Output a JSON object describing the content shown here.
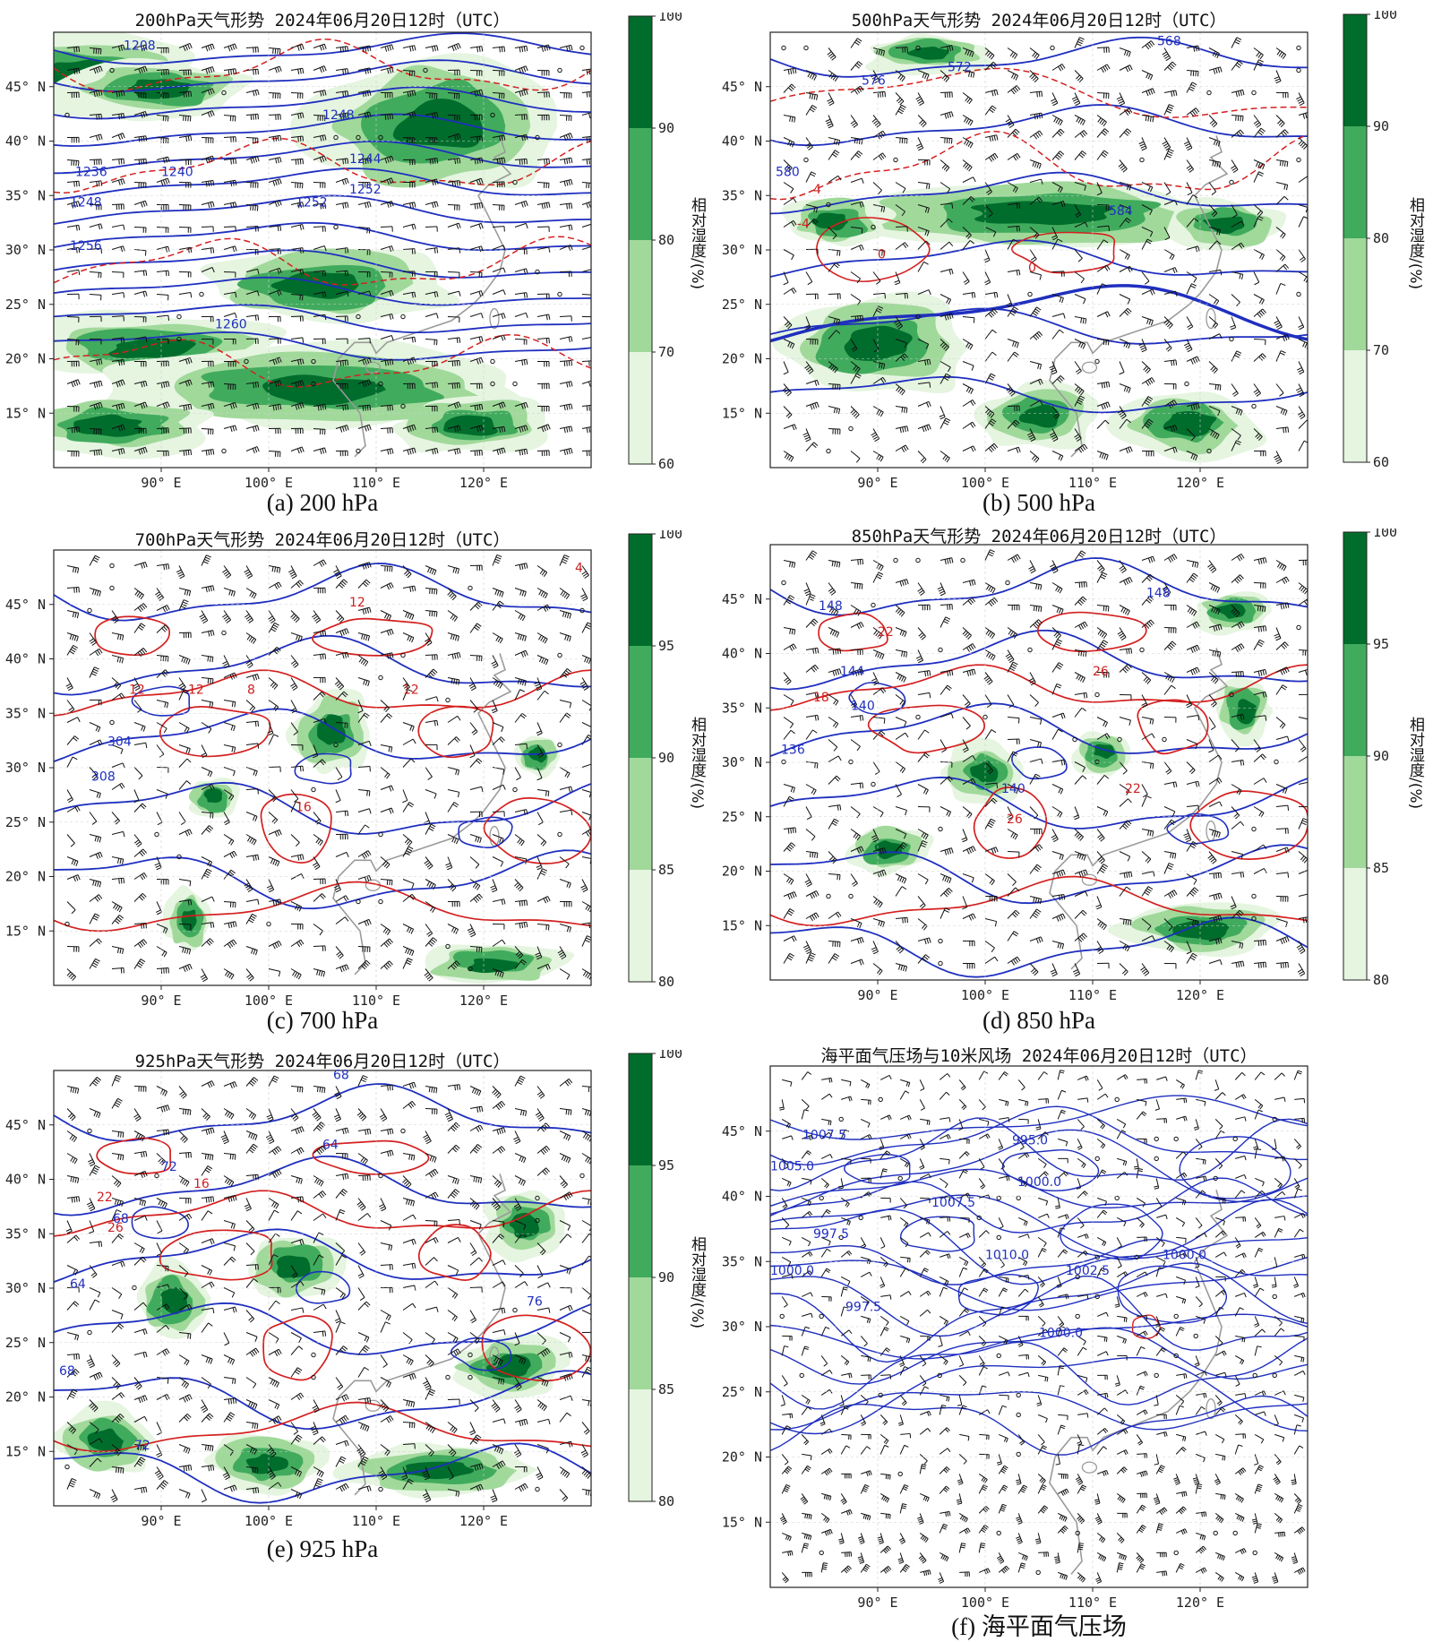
{
  "colors": {
    "contour_blue": "#1f2fbf",
    "contour_red": "#d42020",
    "coast": "#9a9a9a",
    "barb": "#111111",
    "rh_60_70": "#e5f5e0",
    "rh_70_80": "#a1d99b",
    "rh_80_90": "#41ab5d",
    "rh_90_100": "#006d2c"
  },
  "panels": [
    {
      "id": "a",
      "title": "200hPa天气形势  2024年06月20日12时（UTC）",
      "caption": "(a) 200 hPa",
      "lat_ticks": [
        "45° N",
        "40° N",
        "35° N",
        "30° N",
        "25° N",
        "20° N",
        "15° N"
      ],
      "lon_ticks": [
        "90° E",
        "100° E",
        "110° E",
        "120° E"
      ],
      "colorbar": {
        "title": "相对湿度/(%)",
        "ticks": [
          "100",
          "90",
          "80",
          "70",
          "60"
        ]
      },
      "contour_labels": [
        "1236",
        "1240",
        "1248",
        "1252",
        "1256",
        "1260",
        "1244",
        "1248",
        "1252",
        "1208"
      ]
    },
    {
      "id": "b",
      "title": "500hPa天气形势  2024年06月20日12时（UTC）",
      "caption": "(b) 500 hPa",
      "lat_ticks": [
        "45° N",
        "40° N",
        "35° N",
        "30° N",
        "25° N",
        "20° N",
        "15° N"
      ],
      "lon_ticks": [
        "90° E",
        "100° E",
        "110° E",
        "120° E"
      ],
      "colorbar": {
        "title": "相对湿度/(%)",
        "ticks": [
          "100",
          "90",
          "80",
          "70",
          "60"
        ]
      },
      "contour_labels": [
        "568",
        "576",
        "572",
        "584",
        "580",
        "0",
        "4",
        "-4",
        "0"
      ]
    },
    {
      "id": "c",
      "title": "700hPa天气形势  2024年06月20日12时（UTC）",
      "caption": "(c) 700 hPa",
      "lat_ticks": [
        "45° N",
        "40° N",
        "35° N",
        "30° N",
        "25° N",
        "20° N",
        "15° N"
      ],
      "lon_ticks": [
        "90° E",
        "100° E",
        "110° E",
        "120° E"
      ],
      "colorbar": {
        "title": "相对湿度/(%)",
        "ticks": [
          "100",
          "95",
          "90",
          "85",
          "80"
        ]
      },
      "contour_labels": [
        "4",
        "12",
        "12",
        "12",
        "8",
        "304",
        "308",
        "12",
        "16"
      ]
    },
    {
      "id": "d",
      "title": "850hPa天气形势  2024年06月20日12时（UTC）",
      "caption": "(d) 850 hPa",
      "lat_ticks": [
        "45° N",
        "40° N",
        "35° N",
        "30° N",
        "25° N",
        "20° N",
        "15° N"
      ],
      "lon_ticks": [
        "90° E",
        "100° E",
        "110° E",
        "120° E"
      ],
      "colorbar": {
        "title": "相对湿度/(%)",
        "ticks": [
          "100",
          "95",
          "90",
          "85",
          "80"
        ]
      },
      "contour_labels": [
        "148",
        "144",
        "140",
        "136",
        "140",
        "18",
        "22",
        "26",
        "26",
        "22",
        "148"
      ]
    },
    {
      "id": "e",
      "title": "925hPa天气形势  2024年06月20日12时（UTC）",
      "caption": "(e) 925 hPa",
      "lat_ticks": [
        "45° N",
        "40° N",
        "35° N",
        "30° N",
        "25° N",
        "20° N",
        "15° N"
      ],
      "lon_ticks": [
        "90° E",
        "100° E",
        "110° E",
        "120° E"
      ],
      "colorbar": {
        "title": "相对湿度/(%)",
        "ticks": [
          "100",
          "95",
          "90",
          "85",
          "80"
        ]
      },
      "contour_labels": [
        "68",
        "64",
        "72",
        "68",
        "64",
        "22",
        "26",
        "16",
        "76",
        "72",
        "68"
      ]
    },
    {
      "id": "f",
      "title": "海平面气压场与10米风场  2024年06月20日12时（UTC）",
      "caption": "(f) 海平面气压场",
      "lat_ticks": [
        "45° N",
        "40° N",
        "35° N",
        "30° N",
        "25° N",
        "20° N",
        "15° N"
      ],
      "lon_ticks": [
        "90° E",
        "100° E",
        "110° E",
        "120° E"
      ],
      "contour_labels": [
        "1007.5",
        "1005.0",
        "995.0",
        "1000.0",
        "997.5",
        "1007.5",
        "1000.0",
        "1010.0",
        "1002.5",
        "1000.0",
        "997.5",
        "1000.0"
      ]
    }
  ]
}
